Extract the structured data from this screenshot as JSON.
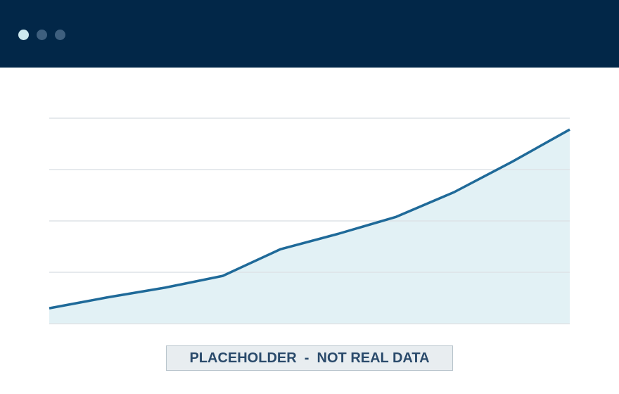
{
  "chart_data": {
    "type": "area",
    "x": [
      0,
      1,
      2,
      3,
      4,
      5,
      6,
      7,
      8,
      9
    ],
    "values": [
      0.3,
      0.51,
      0.7,
      0.93,
      1.45,
      1.75,
      2.08,
      2.56,
      3.15,
      3.78
    ],
    "xlim": [
      0,
      9
    ],
    "ylim": [
      0,
      4
    ],
    "yticks": [
      0,
      1,
      2,
      3,
      4
    ],
    "grid": true,
    "color": "#1f6a99",
    "fill_color": "#e2f1f5",
    "annotation": "PLACEHOLDER  -  NOT REAL DATA"
  }
}
